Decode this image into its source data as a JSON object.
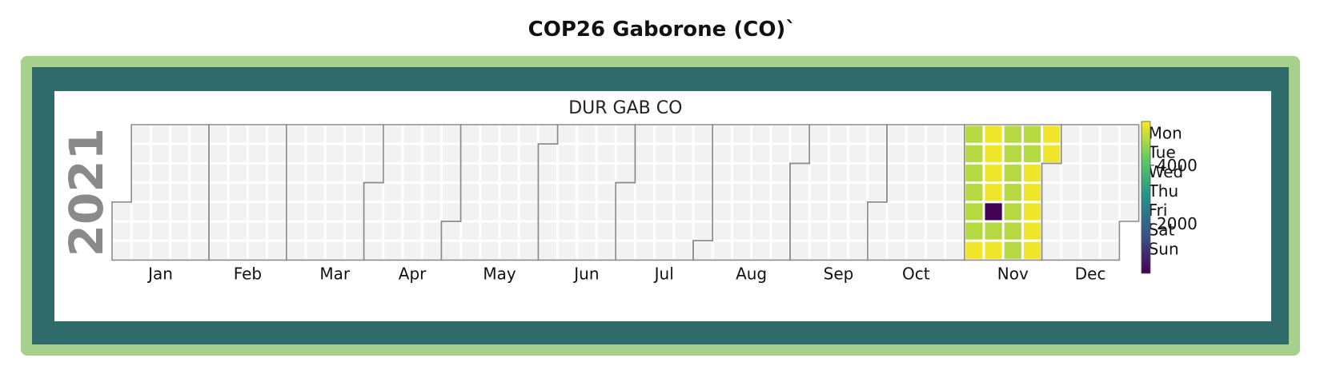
{
  "page": {
    "title": "COP26 Gaborone (CO)`"
  },
  "colors": {
    "outer_frame": "#a8d08d",
    "inner_frame": "#2f6b6b",
    "empty_cell": "#f2f2f2",
    "month_border": "#8a8a8a",
    "colormap": [
      "#440154",
      "#3b528b",
      "#21918c",
      "#5ec962",
      "#fde725"
    ]
  },
  "chart_data": {
    "type": "heatmap",
    "title": "DUR GAB CO",
    "year": "2021",
    "months": [
      "Jan",
      "Feb",
      "Mar",
      "Apr",
      "May",
      "Jun",
      "Jul",
      "Aug",
      "Sep",
      "Oct",
      "Nov",
      "Dec"
    ],
    "weekdays": [
      "Mon",
      "Tue",
      "Wed",
      "Thu",
      "Fri",
      "Sat",
      "Sun"
    ],
    "colorbar": {
      "min": 300,
      "max": 5500,
      "ticks": [
        2000,
        4000
      ]
    },
    "values": [
      {
        "date": "2021-11-01",
        "value": 4900
      },
      {
        "date": "2021-11-02",
        "value": 4900
      },
      {
        "date": "2021-11-03",
        "value": 4900
      },
      {
        "date": "2021-11-04",
        "value": 4900
      },
      {
        "date": "2021-11-05",
        "value": 4900
      },
      {
        "date": "2021-11-06",
        "value": 4900
      },
      {
        "date": "2021-11-07",
        "value": 5400
      },
      {
        "date": "2021-11-08",
        "value": 5400
      },
      {
        "date": "2021-11-09",
        "value": 5400
      },
      {
        "date": "2021-11-10",
        "value": 5400
      },
      {
        "date": "2021-11-11",
        "value": 5400
      },
      {
        "date": "2021-11-12",
        "value": 300
      },
      {
        "date": "2021-11-13",
        "value": 4900
      },
      {
        "date": "2021-11-14",
        "value": 5400
      },
      {
        "date": "2021-11-15",
        "value": 4900
      },
      {
        "date": "2021-11-16",
        "value": 4900
      },
      {
        "date": "2021-11-17",
        "value": 4900
      },
      {
        "date": "2021-11-18",
        "value": 4900
      },
      {
        "date": "2021-11-19",
        "value": 4900
      },
      {
        "date": "2021-11-20",
        "value": 4900
      },
      {
        "date": "2021-11-21",
        "value": 4900
      },
      {
        "date": "2021-11-22",
        "value": 4900
      },
      {
        "date": "2021-11-23",
        "value": 4900
      },
      {
        "date": "2021-11-24",
        "value": 5400
      },
      {
        "date": "2021-11-25",
        "value": 5400
      },
      {
        "date": "2021-11-26",
        "value": 5400
      },
      {
        "date": "2021-11-27",
        "value": 5400
      },
      {
        "date": "2021-11-28",
        "value": 5400
      },
      {
        "date": "2021-11-29",
        "value": 5400
      },
      {
        "date": "2021-11-30",
        "value": 5400
      }
    ]
  }
}
